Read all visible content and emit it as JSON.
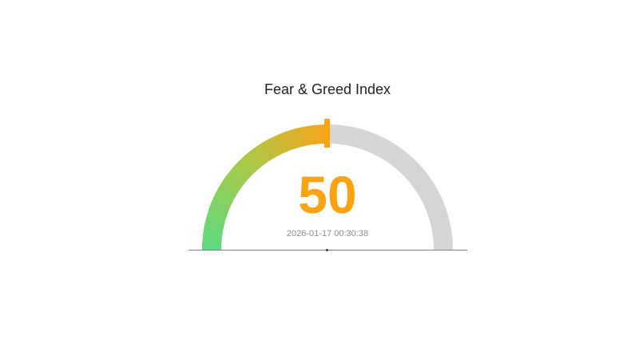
{
  "page": {
    "background": "#ffffff"
  },
  "chart_data": {
    "type": "gauge",
    "title": "Fear & Greed Index",
    "value": 50,
    "value_display": "50",
    "min": 0,
    "max": 100,
    "timestamp": "2026-01-17 00:30:38",
    "orientation": "top-semicircle",
    "pointer": {
      "style": "tick",
      "position": 50
    },
    "segments": [
      {
        "range": [
          0,
          50
        ],
        "style": "gradient",
        "colors": [
          "#5CDA81",
          "#A6CA4A",
          "#F8A41C"
        ]
      },
      {
        "range": [
          50,
          100
        ],
        "style": "solid",
        "color": "#D5D5D5"
      }
    ],
    "colors": {
      "page_background": "#ffffff",
      "title_text": "#222222",
      "gauge_gradient_start": "#5CDA81",
      "gauge_gradient_mid": "#A6CA4A",
      "gauge_gradient_end": "#F8A41C",
      "gauge_rest": "#D5D5D5",
      "pointer_tick": "#FCA311",
      "value_text": "#FCA311",
      "timestamp_text": "#8C8C8C",
      "baseline": "#7D7D7D",
      "pivot_dot": "#3A3A3A"
    }
  }
}
